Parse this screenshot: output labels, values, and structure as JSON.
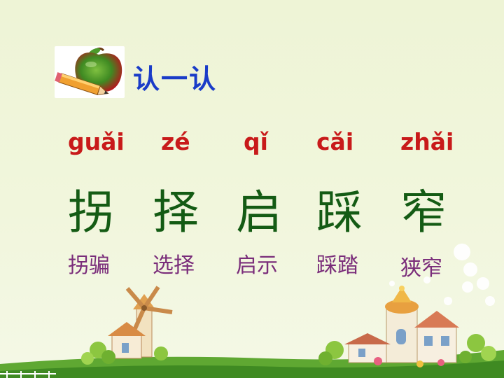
{
  "title": "认一认",
  "items": [
    {
      "pinyin": "guǎi",
      "char": "拐",
      "word": "拐骗"
    },
    {
      "pinyin": "zé",
      "char": "择",
      "word": "选择"
    },
    {
      "pinyin": "qǐ",
      "char": "启",
      "word": "启示"
    },
    {
      "pinyin": "cǎi",
      "char": "踩",
      "word": "踩踏"
    },
    {
      "pinyin": "zhǎi",
      "char": "窄",
      "word": "狭窄"
    }
  ],
  "colors": {
    "title": "#1a3cc8",
    "pinyin": "#c81a1a",
    "char": "#145b14",
    "word": "#7a2d7a",
    "background": "#eef4d6"
  },
  "icons": [
    "apple-pencil-icon",
    "windmill-house-icon",
    "castle-house-icon"
  ]
}
